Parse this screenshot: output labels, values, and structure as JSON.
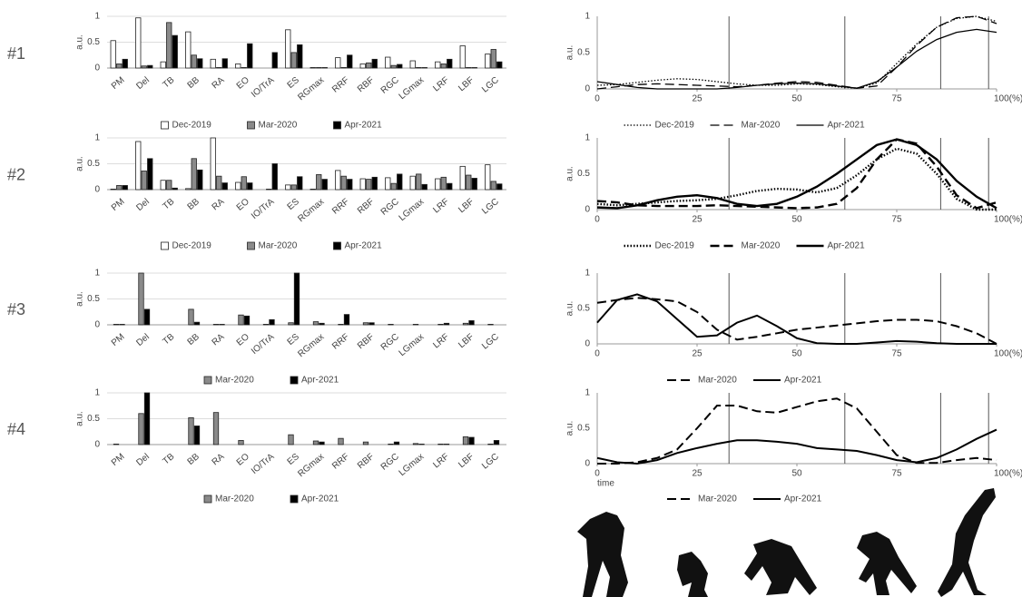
{
  "row_labels": [
    "#1",
    "#2",
    "#3",
    "#4"
  ],
  "chart_data": [
    {
      "type": "bar",
      "ylabel": "a.u.",
      "ylim": [
        0,
        1
      ],
      "yticks": [
        0,
        0.5,
        1
      ],
      "grid": true,
      "categories": [
        "PM",
        "Del",
        "TB",
        "BB",
        "RA",
        "EO",
        "IO/TrA",
        "ES",
        "RGmax",
        "RRF",
        "RBF",
        "RGC",
        "LGmax",
        "LRF",
        "LBF",
        "LGC"
      ],
      "series": [
        {
          "name": "Dec-2019",
          "color": "#ffffff",
          "values": [
            0.53,
            0.97,
            0.12,
            0.7,
            0.17,
            0.08,
            0,
            0.74,
            0.01,
            0.2,
            0.08,
            0.21,
            0.14,
            0.12,
            0.43,
            0.27
          ]
        },
        {
          "name": "Mar-2020",
          "color": "#8a8a8a",
          "values": [
            0.08,
            0.04,
            0.88,
            0.25,
            0.01,
            0.01,
            0,
            0.3,
            0.01,
            0.01,
            0.1,
            0.05,
            0.01,
            0.08,
            0.01,
            0.36
          ]
        },
        {
          "name": "Apr-2021",
          "color": "#000000",
          "values": [
            0.17,
            0.05,
            0.63,
            0.18,
            0.18,
            0.47,
            0.3,
            0.45,
            0.01,
            0.25,
            0.17,
            0.07,
            0.01,
            0.17,
            0.01,
            0.12
          ]
        }
      ]
    },
    {
      "type": "bar",
      "ylabel": "a.u.",
      "ylim": [
        0,
        1
      ],
      "yticks": [
        0,
        0.5,
        1
      ],
      "grid": true,
      "categories": [
        "PM",
        "Del",
        "TB",
        "BB",
        "RA",
        "EO",
        "IO/TrA",
        "ES",
        "RGmax",
        "RRF",
        "RBF",
        "RGC",
        "LGmax",
        "LRF",
        "LBF",
        "LGC"
      ],
      "series": [
        {
          "name": "Dec-2019",
          "color": "#ffffff",
          "values": [
            0.01,
            0.93,
            0.18,
            0.02,
            1.0,
            0.14,
            0,
            0.09,
            0.01,
            0.37,
            0.21,
            0.23,
            0.26,
            0.21,
            0.45,
            0.48
          ]
        },
        {
          "name": "Mar-2020",
          "color": "#8a8a8a",
          "values": [
            0.08,
            0.36,
            0.18,
            0.6,
            0.26,
            0.25,
            0.01,
            0.09,
            0.29,
            0.26,
            0.2,
            0.12,
            0.3,
            0.24,
            0.28,
            0.16
          ]
        },
        {
          "name": "Apr-2021",
          "color": "#000000",
          "values": [
            0.08,
            0.6,
            0.03,
            0.38,
            0.13,
            0.13,
            0.5,
            0.25,
            0.2,
            0.2,
            0.24,
            0.3,
            0.1,
            0.12,
            0.22,
            0.11
          ]
        }
      ]
    },
    {
      "type": "bar",
      "ylabel": "a.u.",
      "ylim": [
        0,
        1
      ],
      "yticks": [
        0,
        0.5,
        1
      ],
      "grid": true,
      "categories": [
        "PM",
        "Del",
        "TB",
        "BB",
        "RA",
        "EO",
        "IO/TrA",
        "ES",
        "RGmax",
        "RRF",
        "RBF",
        "RGC",
        "LGmax",
        "LRF",
        "LBF",
        "LGC"
      ],
      "series": [
        {
          "name": "Mar-2020",
          "color": "#8a8a8a",
          "values": [
            0.01,
            1.0,
            0,
            0.3,
            0.01,
            0.19,
            0.01,
            0.04,
            0.06,
            0.01,
            0.04,
            0.01,
            0.01,
            0.01,
            0.03,
            0.01
          ]
        },
        {
          "name": "Apr-2021",
          "color": "#000000",
          "values": [
            0.01,
            0.3,
            0,
            0.05,
            0.01,
            0.17,
            0.1,
            1.0,
            0.03,
            0.2,
            0.04,
            0,
            0,
            0.03,
            0.08,
            0
          ]
        }
      ]
    },
    {
      "type": "bar",
      "ylabel": "a.u.",
      "ylim": [
        0,
        1
      ],
      "yticks": [
        0,
        0.5,
        1
      ],
      "grid": true,
      "categories": [
        "PM",
        "Del",
        "TB",
        "BB",
        "RA",
        "EO",
        "IO/TrA",
        "ES",
        "RGmax",
        "RRF",
        "RBF",
        "RGC",
        "LGmax",
        "LRF",
        "LBF",
        "LGC"
      ],
      "series": [
        {
          "name": "Mar-2020",
          "color": "#8a8a8a",
          "values": [
            0.01,
            0.6,
            0,
            0.52,
            0.62,
            0.08,
            0,
            0.19,
            0.07,
            0.12,
            0.05,
            0.01,
            0.02,
            0.01,
            0.15,
            0.01
          ]
        },
        {
          "name": "Apr-2021",
          "color": "#000000",
          "values": [
            0,
            1.0,
            0,
            0.36,
            0,
            0,
            0,
            0,
            0.05,
            0,
            0,
            0.05,
            0.01,
            0.01,
            0.14,
            0.08
          ]
        }
      ]
    },
    {
      "type": "line",
      "ylabel": "a.u.",
      "xlim": [
        0,
        100
      ],
      "ylim": [
        0,
        1
      ],
      "yticks": [
        0,
        0.5,
        1
      ],
      "xticks": [
        0,
        25,
        50,
        75,
        {
          "value": 100,
          "label": "100(%)"
        }
      ],
      "vlines": [
        33,
        62,
        86,
        98
      ],
      "line_width": 1.3,
      "x": [
        0,
        5,
        10,
        15,
        20,
        25,
        30,
        35,
        40,
        45,
        50,
        55,
        60,
        65,
        70,
        75,
        80,
        85,
        90,
        95,
        100
      ],
      "series": [
        {
          "name": "Dec-2019",
          "color": "#000000",
          "style": "dotted",
          "values": [
            0.05,
            0.06,
            0.09,
            0.12,
            0.14,
            0.13,
            0.1,
            0.07,
            0.05,
            0.05,
            0.07,
            0.06,
            0.03,
            0.01,
            0.08,
            0.35,
            0.62,
            0.85,
            0.97,
            1.0,
            0.93
          ]
        },
        {
          "name": "Mar-2020",
          "color": "#000000",
          "style": "dashed",
          "values": [
            0,
            0.03,
            0.06,
            0.07,
            0.06,
            0.05,
            0.04,
            0.03,
            0.05,
            0.08,
            0.1,
            0.09,
            0.05,
            0.01,
            0.04,
            0.3,
            0.6,
            0.85,
            0.98,
            1.0,
            0.9
          ]
        },
        {
          "name": "Apr-2021",
          "color": "#000000",
          "style": "solid",
          "values": [
            0.1,
            0.06,
            0.02,
            0,
            0,
            0,
            0,
            0.02,
            0.05,
            0.07,
            0.08,
            0.07,
            0.04,
            0.01,
            0.1,
            0.3,
            0.52,
            0.68,
            0.78,
            0.82,
            0.78
          ]
        }
      ]
    },
    {
      "type": "line",
      "ylabel": "a.u.",
      "xlim": [
        0,
        100
      ],
      "ylim": [
        0,
        1
      ],
      "yticks": [
        0,
        0.5,
        1
      ],
      "xticks": [
        0,
        25,
        50,
        75,
        {
          "value": 100,
          "label": "100(%)"
        }
      ],
      "vlines": [
        33,
        62,
        86,
        98
      ],
      "line_width": 2.4,
      "x": [
        0,
        5,
        10,
        15,
        20,
        25,
        30,
        35,
        40,
        45,
        50,
        55,
        60,
        65,
        70,
        75,
        80,
        85,
        90,
        95,
        100
      ],
      "series": [
        {
          "name": "Dec-2019",
          "color": "#000000",
          "style": "dotted",
          "values": [
            0.08,
            0.06,
            0.08,
            0.1,
            0.12,
            0.13,
            0.15,
            0.2,
            0.26,
            0.29,
            0.28,
            0.24,
            0.3,
            0.48,
            0.7,
            0.85,
            0.78,
            0.5,
            0.15,
            0,
            0
          ]
        },
        {
          "name": "Mar-2020",
          "color": "#000000",
          "style": "dashed",
          "values": [
            0.12,
            0.1,
            0.06,
            0.05,
            0.05,
            0.05,
            0.06,
            0.05,
            0.04,
            0.03,
            0.02,
            0.03,
            0.08,
            0.3,
            0.7,
            0.98,
            0.92,
            0.6,
            0.2,
            0.02,
            0.1
          ]
        },
        {
          "name": "Apr-2021",
          "color": "#000000",
          "style": "solid",
          "values": [
            0.03,
            0.02,
            0.06,
            0.13,
            0.18,
            0.2,
            0.16,
            0.08,
            0.05,
            0.08,
            0.18,
            0.32,
            0.5,
            0.7,
            0.9,
            0.98,
            0.9,
            0.7,
            0.4,
            0.18,
            0.02
          ]
        }
      ]
    },
    {
      "type": "line",
      "ylabel": "a.u.",
      "xlim": [
        0,
        100
      ],
      "ylim": [
        0,
        1
      ],
      "yticks": [
        0,
        0.5,
        1
      ],
      "xticks": [
        0,
        25,
        50,
        75,
        {
          "value": 100,
          "label": "100(%)"
        }
      ],
      "vlines": [
        33,
        62,
        86,
        98
      ],
      "line_width": 2,
      "x": [
        0,
        5,
        10,
        15,
        20,
        25,
        30,
        35,
        40,
        45,
        50,
        55,
        60,
        65,
        70,
        75,
        80,
        85,
        90,
        95,
        100
      ],
      "series": [
        {
          "name": "Mar-2020",
          "color": "#000000",
          "style": "dashed",
          "values": [
            0.58,
            0.62,
            0.65,
            0.63,
            0.6,
            0.45,
            0.2,
            0.06,
            0.1,
            0.15,
            0.2,
            0.23,
            0.26,
            0.29,
            0.32,
            0.34,
            0.34,
            0.32,
            0.25,
            0.15,
            0
          ]
        },
        {
          "name": "Apr-2021",
          "color": "#000000",
          "style": "solid",
          "values": [
            0.3,
            0.62,
            0.7,
            0.6,
            0.35,
            0.1,
            0.12,
            0.3,
            0.4,
            0.25,
            0.08,
            0.01,
            0,
            0,
            0.02,
            0.04,
            0.03,
            0.01,
            0,
            0,
            0
          ]
        }
      ]
    },
    {
      "type": "line",
      "ylabel": "a.u.",
      "xlabel": "time",
      "xlim": [
        0,
        100
      ],
      "ylim": [
        0,
        1
      ],
      "yticks": [
        0,
        0.5,
        1
      ],
      "xticks": [
        0,
        25,
        50,
        75,
        {
          "value": 100,
          "label": "100(%)"
        }
      ],
      "vlines": [
        33,
        62,
        86,
        98
      ],
      "line_width": 2,
      "x": [
        0,
        5,
        10,
        15,
        20,
        25,
        30,
        35,
        40,
        45,
        50,
        55,
        60,
        65,
        70,
        75,
        80,
        85,
        90,
        95,
        100
      ],
      "series": [
        {
          "name": "Mar-2020",
          "color": "#000000",
          "style": "dashed",
          "values": [
            0,
            0,
            0.02,
            0.08,
            0.2,
            0.5,
            0.82,
            0.82,
            0.74,
            0.72,
            0.8,
            0.88,
            0.92,
            0.78,
            0.45,
            0.12,
            0.01,
            0.01,
            0.05,
            0.08,
            0.05
          ]
        },
        {
          "name": "Apr-2021",
          "color": "#000000",
          "style": "solid",
          "values": [
            0.08,
            0.02,
            0,
            0.05,
            0.15,
            0.22,
            0.28,
            0.33,
            0.33,
            0.31,
            0.28,
            0.22,
            0.2,
            0.18,
            0.12,
            0.05,
            0.02,
            0.08,
            0.2,
            0.35,
            0.48
          ]
        }
      ]
    }
  ]
}
